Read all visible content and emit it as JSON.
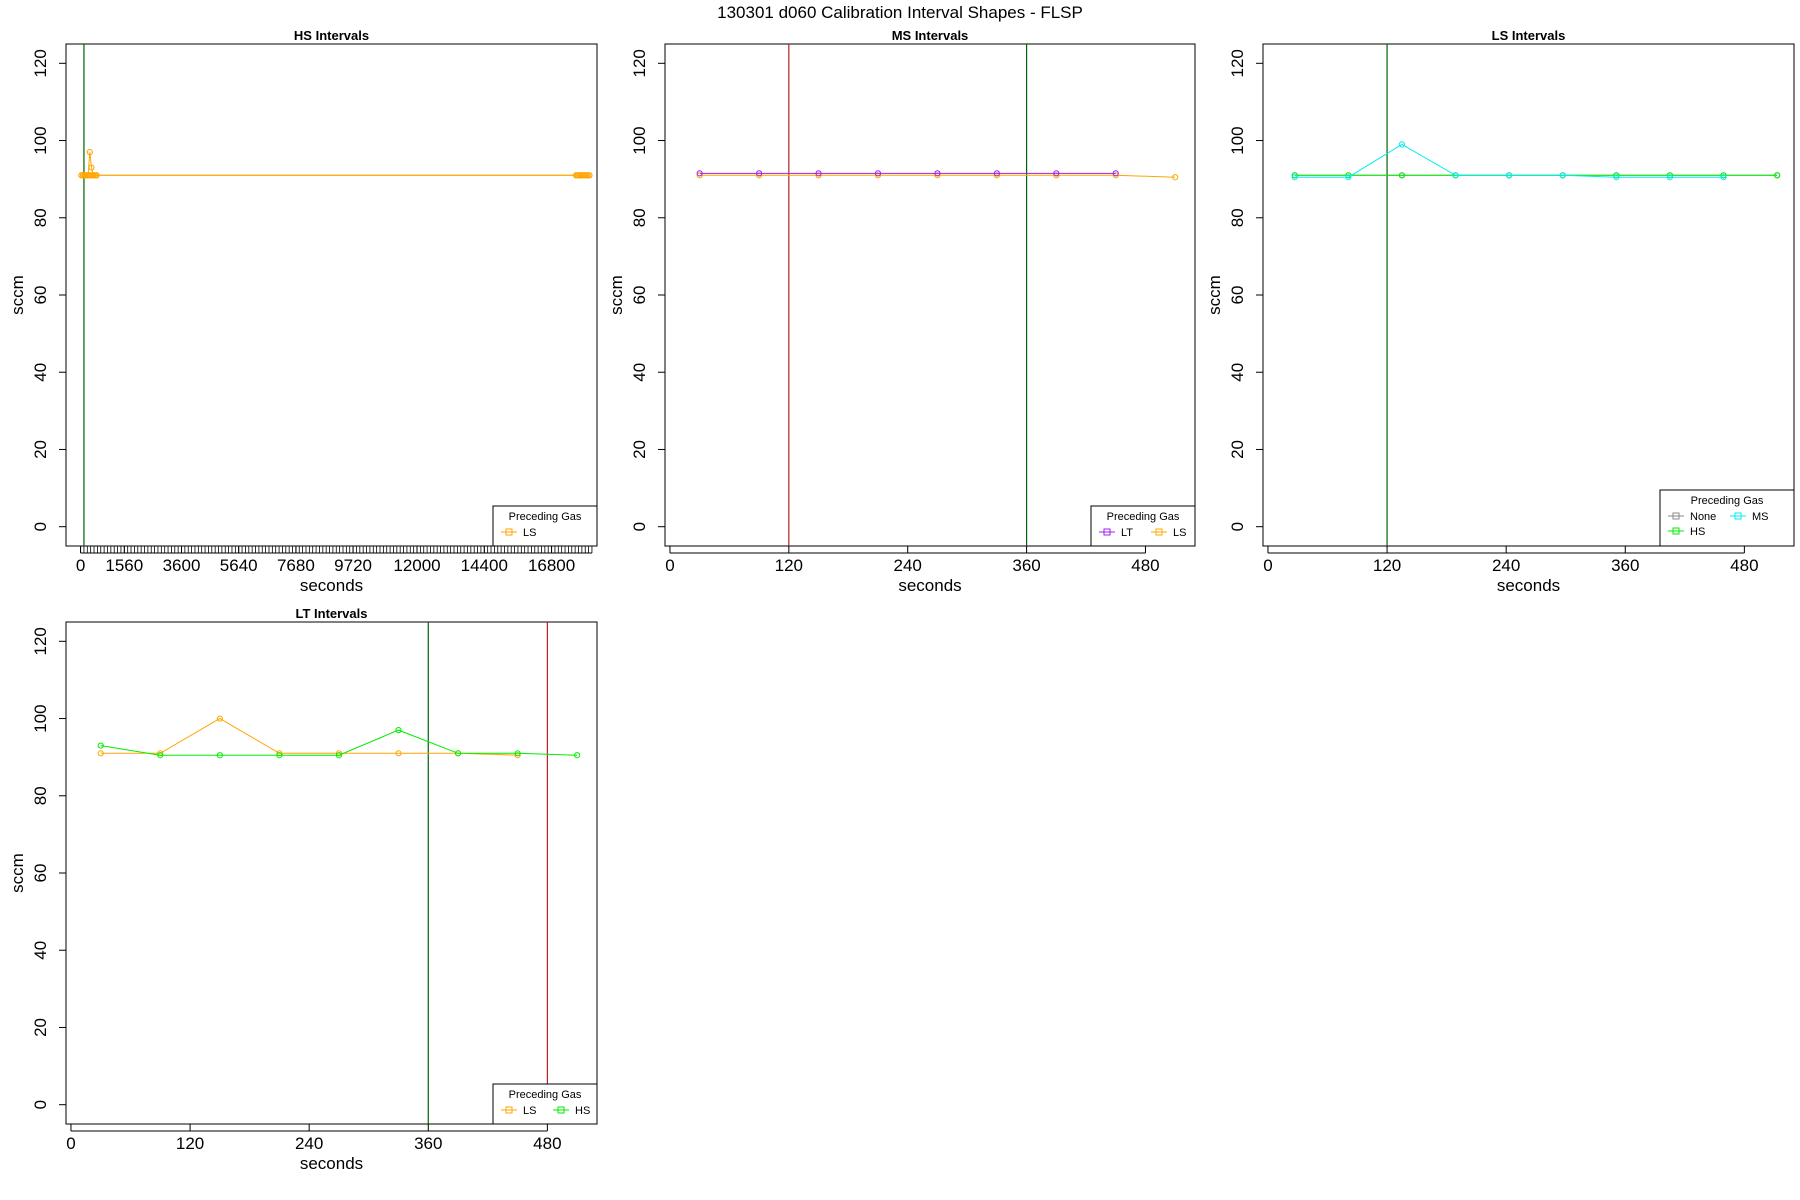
{
  "figure_title": "130301   d060   Calibration Interval Shapes - FLSP",
  "legend_title": "Preceding Gas",
  "colors": {
    "LS": "#FFA500",
    "HS": "#00EE00",
    "MS": "#00EEEE",
    "LT": "#A020F0",
    "None": "#888888",
    "vline_green": "#006400",
    "vline_red": "#B22222",
    "frame": "#000000"
  },
  "chart_data": [
    {
      "type": "line",
      "title": "HS Intervals",
      "xlabel": "seconds",
      "ylabel": "sccm",
      "xlim": [
        -520,
        18420
      ],
      "ylim": [
        -5,
        125
      ],
      "yticks": [
        0,
        20,
        40,
        60,
        80,
        100,
        120
      ],
      "xticks": [
        0,
        1560,
        3600,
        5640,
        7680,
        9720,
        12000,
        14400,
        16800
      ],
      "xticks_minor_step": 120,
      "xticks_minor_max": 18240,
      "grid": false,
      "legend_position": "bottom-right",
      "legend_columns": 1,
      "legend_entries": [
        "LS"
      ],
      "vlines": [
        {
          "x": 120,
          "color": "vline_green"
        }
      ],
      "series": [
        {
          "name": "LS",
          "x": [
            30,
            90,
            150,
            210,
            270,
            330,
            390,
            450,
            510,
            570,
            17670,
            17730,
            17790,
            17850,
            17910,
            17970,
            18030,
            18090,
            18150
          ],
          "y": [
            91,
            91,
            91,
            91,
            91,
            91,
            91,
            91,
            91,
            91,
            91,
            91,
            91,
            91,
            91,
            91,
            91,
            91,
            91
          ]
        },
        {
          "name": "LS",
          "x": [
            30,
            90,
            150,
            210,
            270,
            330,
            390,
            450,
            510,
            570,
            17670,
            17730,
            17790,
            17850,
            17910,
            17970,
            18030,
            18090,
            18150
          ],
          "y": [
            91,
            91,
            91,
            91,
            91,
            97,
            93,
            91,
            91,
            91,
            91,
            91,
            91,
            91,
            91,
            91,
            91,
            91,
            91
          ]
        }
      ]
    },
    {
      "type": "line",
      "title": "MS Intervals",
      "xlabel": "seconds",
      "ylabel": "sccm",
      "xlim": [
        -5,
        530
      ],
      "ylim": [
        -5,
        125
      ],
      "yticks": [
        0,
        20,
        40,
        60,
        80,
        100,
        120
      ],
      "xticks": [
        0,
        120,
        240,
        360,
        480
      ],
      "grid": false,
      "legend_position": "bottom-right",
      "legend_columns": 2,
      "legend_entries": [
        "LT",
        "LS"
      ],
      "vlines": [
        {
          "x": 120,
          "color": "vline_red"
        },
        {
          "x": 360,
          "color": "vline_green"
        }
      ],
      "series": [
        {
          "name": "LS",
          "x": [
            30,
            90,
            150,
            210,
            270,
            330,
            390,
            450,
            510
          ],
          "y": [
            91,
            91,
            91,
            91,
            91,
            91,
            91,
            91,
            90.5
          ]
        },
        {
          "name": "LT",
          "x": [
            30,
            90,
            150,
            210,
            270,
            330,
            390,
            450
          ],
          "y": [
            91.5,
            91.5,
            91.5,
            91.5,
            91.5,
            91.5,
            91.5,
            91.5
          ]
        }
      ]
    },
    {
      "type": "line",
      "title": "LS Intervals",
      "xlabel": "seconds",
      "ylabel": "sccm",
      "xlim": [
        -5,
        530
      ],
      "ylim": [
        -5,
        125
      ],
      "yticks": [
        0,
        20,
        40,
        60,
        80,
        100,
        120
      ],
      "xticks": [
        0,
        120,
        240,
        360,
        480
      ],
      "grid": false,
      "legend_position": "bottom-right",
      "legend_columns": 2,
      "legend_entries": [
        "None",
        "MS",
        "HS"
      ],
      "vlines": [
        {
          "x": 120,
          "color": "vline_green"
        }
      ],
      "series": [
        {
          "name": "None",
          "x": [
            27,
            81,
            135,
            189,
            243,
            297,
            351,
            405,
            459,
            513
          ],
          "y": [
            91,
            91,
            91,
            91,
            91,
            91,
            91,
            91,
            91,
            91
          ]
        },
        {
          "name": "HS",
          "x": [
            27,
            81,
            135,
            189,
            243,
            297,
            351,
            405,
            459,
            513
          ],
          "y": [
            91,
            91,
            91,
            91,
            91,
            91,
            91,
            91,
            91,
            91
          ]
        },
        {
          "name": "MS",
          "x": [
            27,
            81,
            135,
            189,
            243,
            297,
            351,
            405,
            459
          ],
          "y": [
            90.5,
            90.5,
            99,
            91,
            91,
            91,
            90.5,
            90.5,
            90.5
          ]
        }
      ]
    },
    {
      "type": "line",
      "title": "LT Intervals",
      "xlabel": "seconds",
      "ylabel": "sccm",
      "xlim": [
        -5,
        530
      ],
      "ylim": [
        -5,
        125
      ],
      "yticks": [
        0,
        20,
        40,
        60,
        80,
        100,
        120
      ],
      "xticks": [
        0,
        120,
        240,
        360,
        480
      ],
      "grid": false,
      "legend_position": "bottom-right",
      "legend_columns": 2,
      "legend_entries": [
        "LS",
        "HS"
      ],
      "vlines": [
        {
          "x": 360,
          "color": "vline_green"
        },
        {
          "x": 480,
          "color": "vline_red"
        }
      ],
      "series": [
        {
          "name": "LS",
          "x": [
            30,
            90,
            150,
            210,
            270,
            330,
            390,
            450
          ],
          "y": [
            91,
            91,
            100,
            91,
            91,
            91,
            91,
            90.5
          ]
        },
        {
          "name": "HS",
          "x": [
            30,
            90,
            150,
            210,
            270,
            330,
            390,
            450,
            510
          ],
          "y": [
            93,
            90.5,
            90.5,
            90.5,
            90.5,
            97,
            91,
            91,
            90.5
          ]
        }
      ]
    }
  ]
}
